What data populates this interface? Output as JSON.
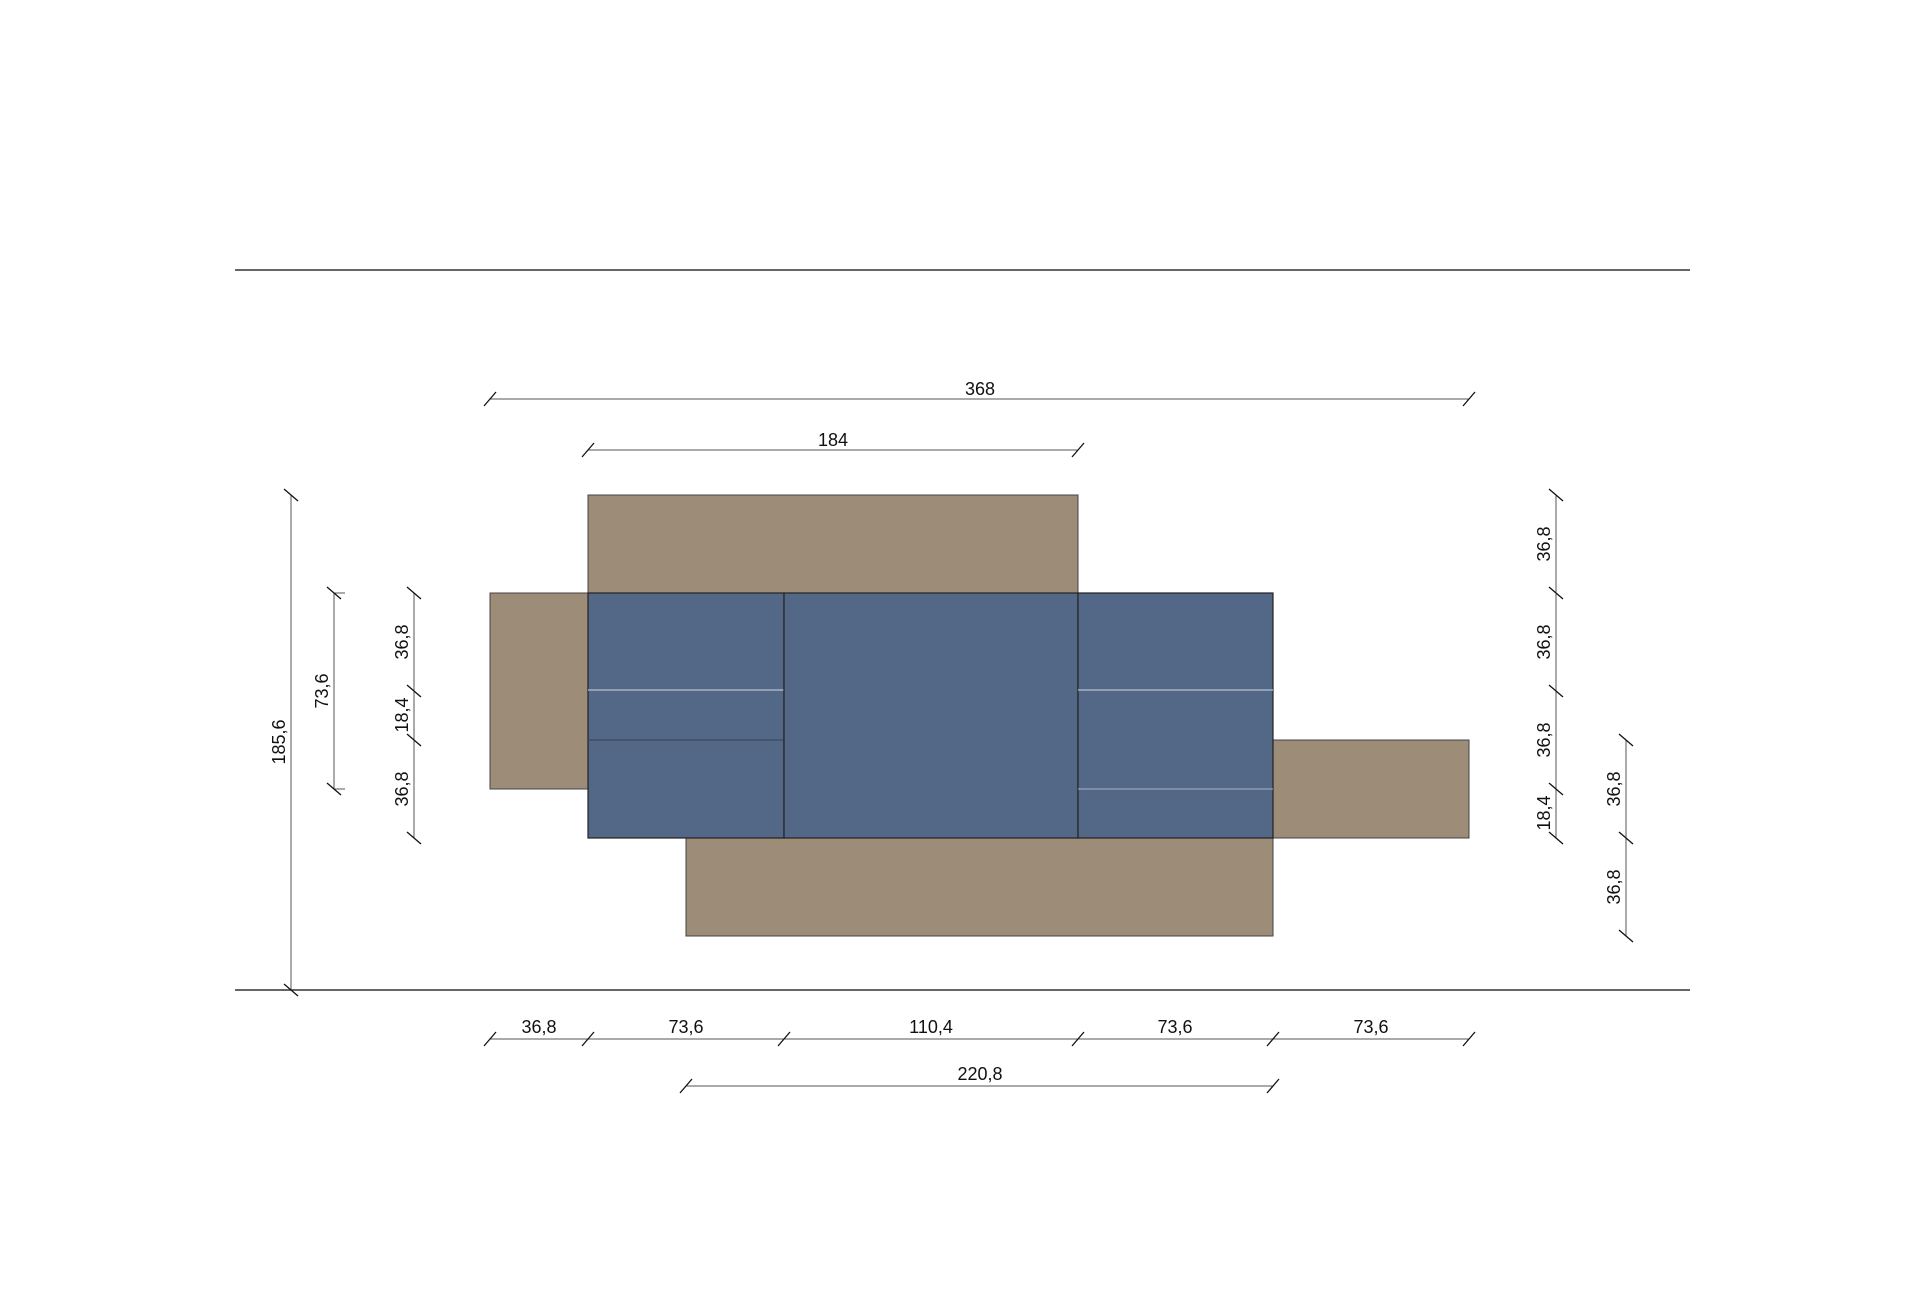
{
  "colors": {
    "background": "#ffffff",
    "blue_panel": "#536786",
    "brown_panel": "#9c8c78",
    "panel_stroke": "#333333",
    "dimension_line": "#555555",
    "text": "#111111"
  },
  "dimensions": {
    "top_overall": "368",
    "top_upper_unit": "184",
    "left_overall_height": "185,6",
    "left_mid_height": "73,6",
    "left_upper_module": "36,8",
    "left_gap": "18,4",
    "left_lower_module": "36,8",
    "right_1": "36,8",
    "right_2": "36,8",
    "right_3": "36,8",
    "right_4": "18,4",
    "right_outer_1": "36,8",
    "right_outer_2": "36,8",
    "bottom_1": "36,8",
    "bottom_2": "73,6",
    "bottom_3": "110,4",
    "bottom_4": "73,6",
    "bottom_5": "73,6",
    "bottom_lower_unit": "220,8"
  }
}
